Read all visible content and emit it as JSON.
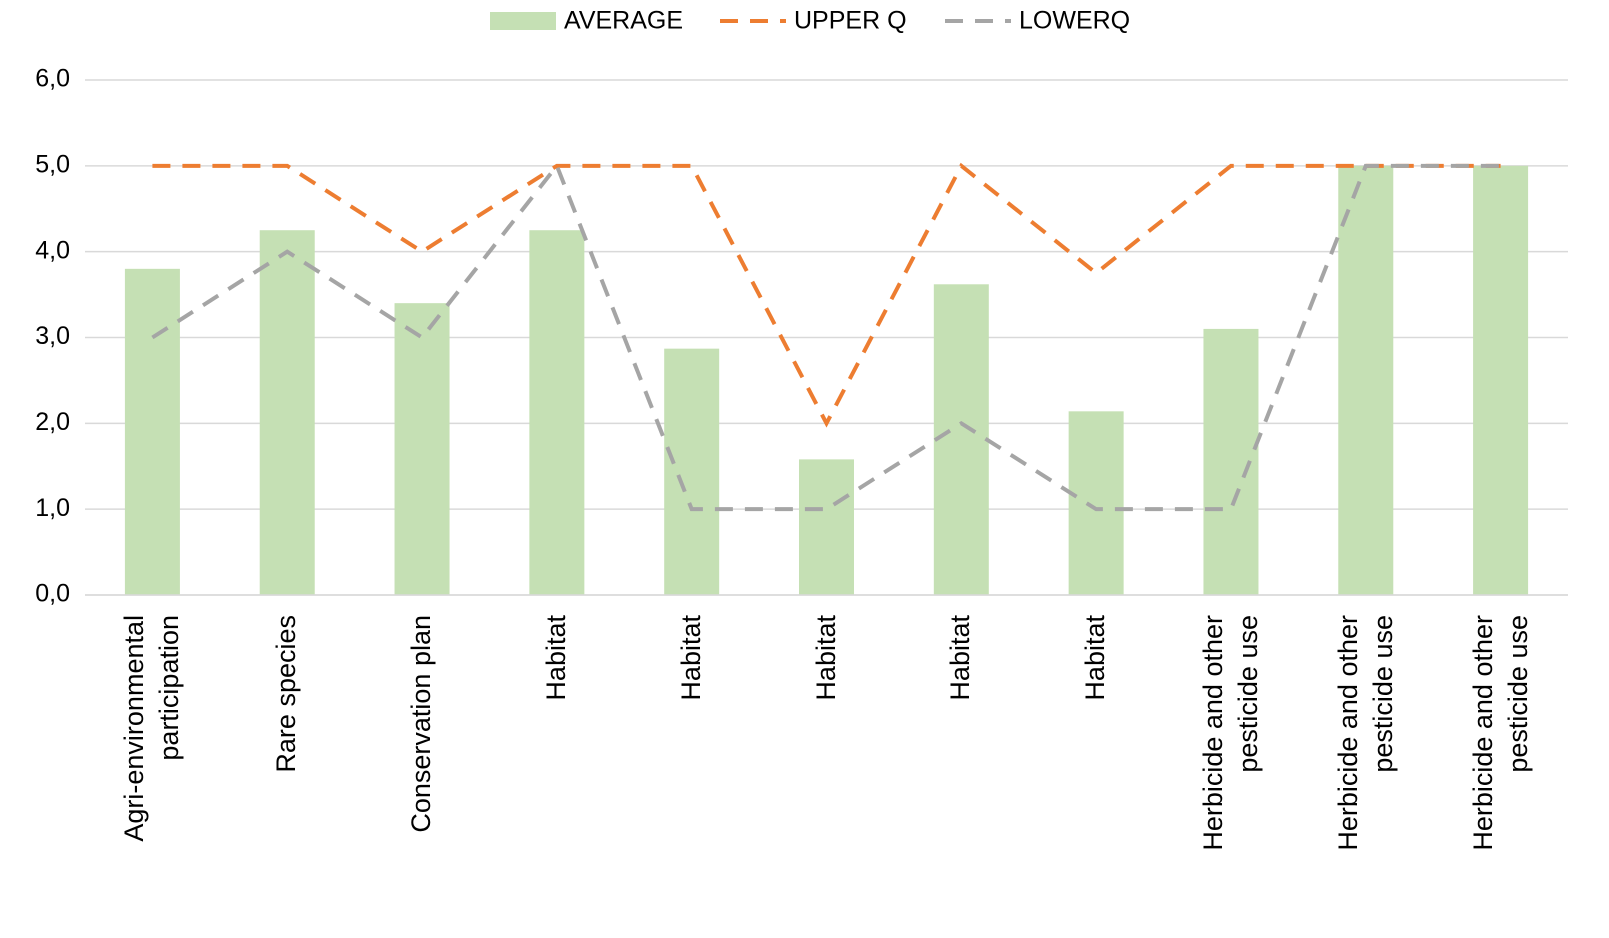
{
  "chart_data": {
    "type": "bar_line",
    "categories": [
      "Agri-environmental participation",
      "Rare species",
      "Conservation plan",
      "Habitat",
      "Habitat",
      "Habitat",
      "Habitat",
      "Habitat",
      "Herbicide and other pesticide use",
      "Herbicide and other pesticide use",
      "Herbicide and other pesticide use"
    ],
    "series": [
      {
        "name": "AVERAGE",
        "kind": "bar",
        "color": "#c5e0b4",
        "values": [
          3.8,
          4.25,
          3.4,
          4.25,
          2.87,
          1.58,
          3.62,
          2.14,
          3.1,
          5.0,
          5.0
        ]
      },
      {
        "name": "UPPER Q",
        "kind": "dashed-line",
        "color": "#ed7d31",
        "values": [
          5,
          5,
          4,
          5,
          5,
          2,
          5,
          3.75,
          5,
          5,
          5
        ]
      },
      {
        "name": "LOWERQ",
        "kind": "dashed-line",
        "color": "#a5a5a5",
        "values": [
          3,
          4,
          3,
          5,
          1,
          1,
          2,
          1,
          1,
          5,
          5
        ]
      }
    ],
    "ylim": [
      0,
      6
    ],
    "yticks": [
      {
        "value": 0,
        "label": "0,0"
      },
      {
        "value": 1,
        "label": "1,0"
      },
      {
        "value": 2,
        "label": "2,0"
      },
      {
        "value": 3,
        "label": "3,0"
      },
      {
        "value": 4,
        "label": "4,0"
      },
      {
        "value": 5,
        "label": "5,0"
      },
      {
        "value": 6,
        "label": "6,0"
      }
    ],
    "grid": true,
    "legend": "top"
  }
}
